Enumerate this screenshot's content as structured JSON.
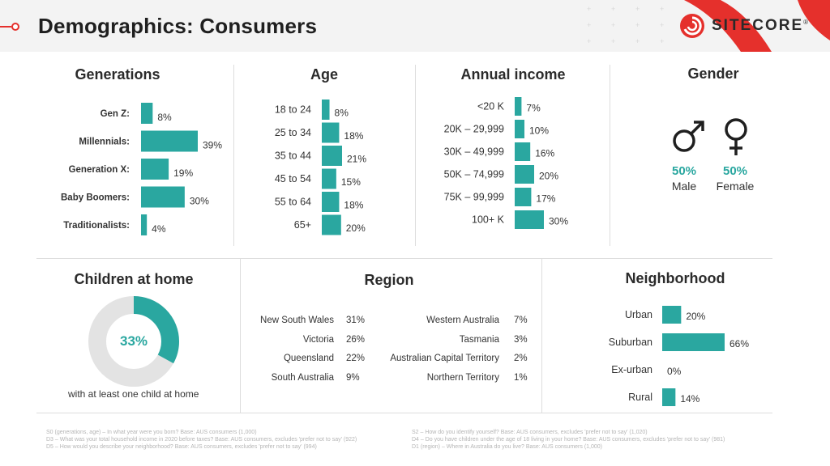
{
  "header": {
    "title": "Demographics: Consumers",
    "logo_text": "SITECORE",
    "logo_mark": "®",
    "accent_color": "#e5302c",
    "logo_icon": "sitecore-swirl-icon"
  },
  "colors": {
    "bar": "#2aa7a0",
    "donut_empty": "#e3e3e3",
    "teal_text": "#2aa7a0"
  },
  "chart_data": [
    {
      "type": "bar",
      "orientation": "horizontal",
      "title": "Generations",
      "categories": [
        "Gen Z:",
        "Millennials:",
        "Generation X:",
        "Baby Boomers:",
        "Traditionalists:"
      ],
      "values": [
        8,
        39,
        19,
        30,
        4
      ],
      "labels": [
        "8%",
        "39%",
        "19%",
        "30%",
        "4%"
      ],
      "xlim": [
        0,
        39
      ]
    },
    {
      "type": "bar",
      "orientation": "horizontal",
      "title": "Age",
      "categories": [
        "18 to 24",
        "25 to 34",
        "35 to 44",
        "45 to 54",
        "55 to 64",
        "65+"
      ],
      "values": [
        8,
        18,
        21,
        15,
        18,
        20
      ],
      "labels": [
        "8%",
        "18%",
        "21%",
        "15%",
        "18%",
        "20%"
      ],
      "xlim": [
        0,
        21
      ]
    },
    {
      "type": "bar",
      "orientation": "horizontal",
      "title": "Annual income",
      "categories": [
        "<20 K",
        "20K – 29,999",
        "30K – 49,999",
        "50K – 74,999",
        "75K – 99,999",
        "100+ K"
      ],
      "values": [
        7,
        10,
        16,
        20,
        17,
        30
      ],
      "labels": [
        "7%",
        "10%",
        "16%",
        "20%",
        "17%",
        "30%"
      ],
      "xlim": [
        0,
        30
      ]
    },
    {
      "type": "table",
      "title": "Gender",
      "rows": [
        {
          "symbol": "♂",
          "icon": "male-symbol-icon",
          "value": "50%",
          "label": "Male"
        },
        {
          "symbol": "♀",
          "icon": "female-symbol-icon",
          "value": "50%",
          "label": "Female"
        }
      ]
    },
    {
      "type": "pie",
      "title": "Children at home",
      "values": [
        33,
        67
      ],
      "center_label": "33%",
      "caption": "with at least one child at home"
    },
    {
      "type": "table",
      "title": "Region",
      "left": [
        {
          "name": "New South Wales",
          "value": "31%"
        },
        {
          "name": "Victoria",
          "value": "26%"
        },
        {
          "name": "Queensland",
          "value": "22%"
        },
        {
          "name": "South Australia",
          "value": "9%"
        }
      ],
      "right": [
        {
          "name": "Western Australia",
          "value": "7%"
        },
        {
          "name": "Tasmania",
          "value": "3%"
        },
        {
          "name": "Australian Capital Territory",
          "value": "2%"
        },
        {
          "name": "Northern Territory",
          "value": "1%"
        }
      ]
    },
    {
      "type": "bar",
      "orientation": "horizontal",
      "title": "Neighborhood",
      "categories": [
        "Urban",
        "Suburban",
        "Ex-urban",
        "Rural"
      ],
      "values": [
        20,
        66,
        0,
        14
      ],
      "labels": [
        "20%",
        "66%",
        "0%",
        "14%"
      ],
      "xlim": [
        0,
        66
      ]
    }
  ],
  "footnotes": {
    "left": [
      "S0 (generations, age) – In what year were you born? Base: AUS consumers (1,000)",
      "D3 – What was your total household income in 2020 before taxes? Base: AUS consumers, excludes 'prefer not to say' (922)",
      "D5 – How would you describe your neighborhood? Base: AUS consumers, excludes 'prefer not to say' (994)"
    ],
    "right": [
      "S2 – How do you identify yourself? Base: AUS consumers, excludes 'prefer not to say' (1,020)",
      "D4 – Do you have children under the age of 18 living in your home? Base: AUS consumers, excludes 'prefer not to say' (981)",
      "D1 (region) – Where in Australia do you live? Base: AUS consumers (1,000)"
    ]
  }
}
